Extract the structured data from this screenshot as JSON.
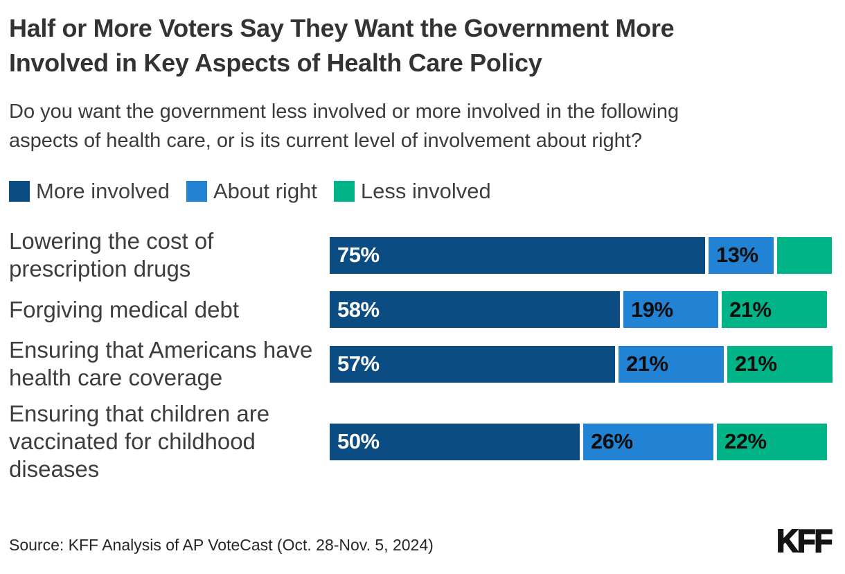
{
  "header": {
    "title_lines": [
      "Half or More Voters Say They Want the Government More",
      "Involved in Key Aspects of Health Care Policy"
    ],
    "subtitle_lines": [
      "Do you want the government less involved or more involved in the following",
      "aspects of health care, or is its current level of involvement about right?"
    ]
  },
  "legend": {
    "items": [
      {
        "label": "More involved",
        "color": "#0b4d82"
      },
      {
        "label": "About right",
        "color": "#2282d4"
      },
      {
        "label": "Less involved",
        "color": "#00b487"
      }
    ]
  },
  "chart_data": {
    "type": "bar",
    "orientation": "horizontal",
    "stacked": true,
    "unit": "%",
    "axis_range": [
      0,
      100
    ],
    "grid": false,
    "legend_position": "top",
    "categories": [
      "Lowering the cost of prescription drugs",
      "Forgiving medical debt",
      "Ensuring that Americans have health care coverage",
      "Ensuring that children are vaccinated for childhood diseases"
    ],
    "category_lines": [
      [
        "Lowering the cost of",
        "prescription drugs"
      ],
      [
        "Forgiving medical debt"
      ],
      [
        "Ensuring that Americans have",
        "health care coverage"
      ],
      [
        "Ensuring that children are",
        "vaccinated for childhood",
        "diseases"
      ]
    ],
    "series": [
      {
        "name": "More involved",
        "color": "#0b4d82",
        "label_color": "#ffffff",
        "values": [
          75,
          58,
          57,
          50
        ],
        "labels": [
          "75%",
          "58%",
          "57%",
          "50%"
        ]
      },
      {
        "name": "About right",
        "color": "#2282d4",
        "label_color": "#0d0d0d",
        "values": [
          13,
          19,
          21,
          26
        ],
        "labels": [
          "13%",
          "19%",
          "21%",
          "26%"
        ]
      },
      {
        "name": "Less involved",
        "color": "#00b487",
        "label_color": "#0d0d0d",
        "values": [
          11,
          21,
          21,
          22
        ],
        "labels": [
          "",
          "21%",
          "21%",
          "22%"
        ]
      }
    ]
  },
  "footer": {
    "source": "Source: KFF Analysis of AP VoteCast (Oct. 28-Nov. 5, 2024)",
    "logo": "KFF"
  }
}
